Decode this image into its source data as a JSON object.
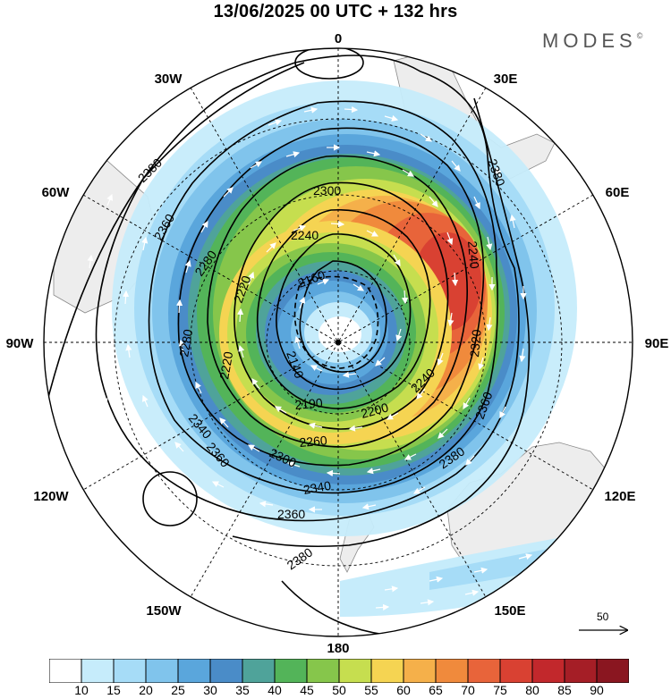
{
  "title": "13/06/2025  00 UTC  + 132 hrs",
  "brand": "MODES",
  "brand_mark": "©",
  "longitude_labels": {
    "lon_0": "0",
    "lon_30E": "30E",
    "lon_60E": "60E",
    "lon_90E": "90E",
    "lon_120E": "120E",
    "lon_150E": "150E",
    "lon_180": "180",
    "lon_150W": "150W",
    "lon_120W": "120W",
    "lon_90W": "90W",
    "lon_60W": "60W",
    "lon_30W": "30W"
  },
  "contour_labels": {
    "c1": "2380",
    "c2": "2360",
    "c3": "2300",
    "c4": "2240",
    "c5": "2280",
    "c6": "2220",
    "c7": "2160",
    "c8": "2140",
    "c9": "2280",
    "c10": "2220",
    "c11": "2190",
    "c12": "2200",
    "c13": "2240",
    "c14": "2320",
    "c15": "2340",
    "c16": "2380",
    "c17": "2360",
    "c18": "2240",
    "c19": "2260",
    "c20": "2300",
    "c21": "2340",
    "c22": "2360",
    "c23": "2380",
    "c24": "2380",
    "c25": "2360"
  },
  "reference_vector": "50",
  "legend": {
    "colors": [
      "#ffffff",
      "#c6ecfb",
      "#a6dcf7",
      "#80c4ec",
      "#5aa6dc",
      "#4a8cc8",
      "#4fa39a",
      "#53b459",
      "#86c64b",
      "#c6de4f",
      "#f5d452",
      "#f5b04a",
      "#f08a3c",
      "#e8643a",
      "#d94132",
      "#c2282c",
      "#a51e26",
      "#8a1620"
    ],
    "ticks": [
      "10",
      "15",
      "20",
      "25",
      "30",
      "35",
      "40",
      "45",
      "50",
      "55",
      "60",
      "65",
      "70",
      "75",
      "80",
      "85",
      "90"
    ]
  }
}
